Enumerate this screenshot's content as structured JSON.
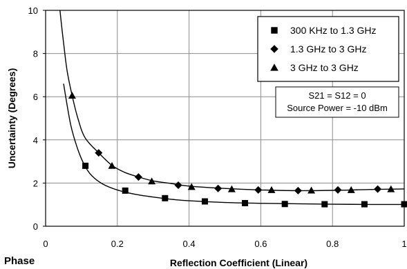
{
  "corner_label": "Phase",
  "chart_data": {
    "type": "scatter",
    "title": "",
    "xlabel": "Reflection Coefficient (Linear)",
    "ylabel": "Uncertainty (Degrees)",
    "xlim": [
      0,
      1
    ],
    "ylim": [
      0,
      10
    ],
    "x_ticks": [
      "0",
      "0.2",
      "0.4",
      "0.6",
      "0.8",
      "1"
    ],
    "y_ticks": [
      "0",
      "2",
      "4",
      "6",
      "8",
      "10"
    ],
    "grid": true,
    "legend_position": "top-right",
    "note_lines": [
      "S21 = S12 = 0",
      "Source Power = -10 dBm"
    ],
    "colors": {
      "line": "#000000",
      "grid": "#8c8c8c",
      "marker": "#000000"
    },
    "series": [
      {
        "name": "300 KHz to 1.3 GHz",
        "marker": "square",
        "curve": [
          [
            0.05,
            6.6
          ],
          [
            0.07,
            4.7
          ],
          [
            0.09,
            3.55
          ],
          [
            0.11,
            2.78
          ],
          [
            0.13,
            2.32
          ],
          [
            0.16,
            1.95
          ],
          [
            0.2,
            1.68
          ],
          [
            0.25,
            1.48
          ],
          [
            0.3,
            1.35
          ],
          [
            0.35,
            1.25
          ],
          [
            0.4,
            1.18
          ],
          [
            0.5,
            1.1
          ],
          [
            0.6,
            1.06
          ],
          [
            0.7,
            1.04
          ],
          [
            0.8,
            1.02
          ],
          [
            0.9,
            1.01
          ],
          [
            1.0,
            1.01
          ]
        ],
        "x": [
          0.111,
          0.222,
          0.333,
          0.444,
          0.556,
          0.667,
          0.778,
          0.889,
          1.0
        ],
        "values": [
          2.8,
          1.65,
          1.3,
          1.15,
          1.07,
          1.03,
          1.02,
          1.02,
          1.02
        ]
      },
      {
        "name": "1.3 GHz to 3 GHz",
        "marker": "diamond",
        "curve": [
          [
            0.04,
            10.0
          ],
          [
            0.05,
            8.5
          ],
          [
            0.06,
            7.2
          ],
          [
            0.074,
            6.05
          ],
          [
            0.09,
            5.0
          ],
          [
            0.11,
            4.1
          ],
          [
            0.148,
            3.4
          ],
          [
            0.185,
            2.82
          ],
          [
            0.22,
            2.5
          ],
          [
            0.259,
            2.28
          ],
          [
            0.3,
            2.1
          ],
          [
            0.35,
            1.98
          ],
          [
            0.4,
            1.86
          ],
          [
            0.5,
            1.75
          ],
          [
            0.6,
            1.68
          ],
          [
            0.7,
            1.65
          ],
          [
            0.8,
            1.66
          ],
          [
            0.9,
            1.7
          ],
          [
            1.0,
            1.73
          ]
        ],
        "x": [
          0.148,
          0.259,
          0.37,
          0.481,
          0.593,
          0.704,
          0.815,
          0.926
        ],
        "values": [
          3.4,
          2.28,
          1.9,
          1.75,
          1.68,
          1.65,
          1.68,
          1.72
        ]
      },
      {
        "name": "3 GHz to 3 GHz",
        "marker": "triangle",
        "x": [
          0.074,
          0.185,
          0.296,
          0.407,
          0.519,
          0.63,
          0.741,
          0.852,
          0.963
        ],
        "values": [
          6.05,
          2.8,
          2.08,
          1.82,
          1.72,
          1.68,
          1.66,
          1.68,
          1.72
        ]
      }
    ]
  }
}
